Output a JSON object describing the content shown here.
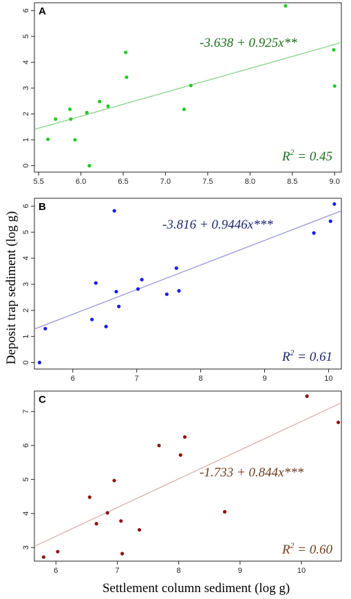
{
  "figure": {
    "ylabel": "Deposit trap sediment (log g)",
    "xlabel": "Settlement column sediment (log g)"
  },
  "chart_data": [
    {
      "type": "scatter",
      "panel": "A",
      "color": "#22cc22",
      "line_color": "#7bd07b",
      "text_color": "#1a6e1a",
      "equation": "-3.638 + 0.925x**",
      "r2_base": "R",
      "r2_sup": "2",
      "r2_value": " = 0.45",
      "xlim": [
        5.45,
        9.08
      ],
      "ylim": [
        -0.25,
        6.3
      ],
      "xticks": [
        5.5,
        6.0,
        6.5,
        7.0,
        7.5,
        8.0,
        8.5,
        9.0
      ],
      "xticklabels": [
        "5.5",
        "6.0",
        "6.5",
        "7.0",
        "7.5",
        "8.0",
        "8.5",
        "9.0"
      ],
      "yticks": [
        0,
        1,
        2,
        3,
        4,
        5,
        6
      ],
      "yticklabels": [
        "0",
        "1",
        "2",
        "3",
        "4",
        "5",
        "6"
      ],
      "intercept": -3.638,
      "slope": 0.925,
      "points": [
        [
          5.61,
          1.02
        ],
        [
          5.7,
          1.8
        ],
        [
          5.87,
          2.18
        ],
        [
          5.88,
          1.8
        ],
        [
          5.93,
          1.0
        ],
        [
          6.07,
          2.05
        ],
        [
          6.1,
          0.0
        ],
        [
          6.22,
          2.48
        ],
        [
          6.32,
          2.3
        ],
        [
          6.53,
          4.38
        ],
        [
          6.54,
          3.42
        ],
        [
          7.22,
          2.18
        ],
        [
          7.3,
          3.1
        ],
        [
          8.42,
          6.18
        ],
        [
          8.99,
          4.48
        ],
        [
          9.0,
          3.08
        ]
      ]
    },
    {
      "type": "scatter",
      "panel": "B",
      "color": "#1a1aee",
      "line_color": "#8c8cd8",
      "text_color": "#1a2670",
      "equation": "-3.816 + 0.9446x***",
      "r2_base": "R",
      "r2_sup": "2",
      "r2_value": " = 0.61",
      "xlim": [
        5.4,
        10.2
      ],
      "ylim": [
        -0.25,
        6.3
      ],
      "xticks": [
        6,
        7,
        8,
        9,
        10
      ],
      "xticklabels": [
        "6",
        "7",
        "8",
        "9",
        "10"
      ],
      "yticks": [
        0,
        1,
        2,
        3,
        4,
        5,
        6
      ],
      "yticklabels": [
        "0",
        "1",
        "2",
        "3",
        "4",
        "5",
        "6"
      ],
      "intercept": -3.816,
      "slope": 0.9446,
      "points": [
        [
          5.48,
          0.0
        ],
        [
          5.57,
          1.3
        ],
        [
          6.3,
          1.65
        ],
        [
          6.36,
          3.05
        ],
        [
          6.52,
          1.38
        ],
        [
          6.65,
          5.82
        ],
        [
          6.68,
          2.72
        ],
        [
          6.72,
          2.15
        ],
        [
          7.02,
          2.82
        ],
        [
          7.08,
          3.18
        ],
        [
          7.47,
          2.62
        ],
        [
          7.62,
          3.62
        ],
        [
          7.66,
          2.75
        ],
        [
          9.77,
          4.97
        ],
        [
          10.03,
          5.42
        ],
        [
          10.09,
          6.08
        ]
      ]
    },
    {
      "type": "scatter",
      "panel": "C",
      "color": "#8b1515",
      "line_color": "#d4a9a3",
      "text_color": "#6e3c1e",
      "equation": "-1.733 + 0.844x***",
      "r2_base": "R",
      "r2_sup": "2",
      "r2_value": " = 0.60",
      "xlim": [
        5.65,
        10.65
      ],
      "ylim": [
        2.6,
        7.6
      ],
      "xticks": [
        6,
        7,
        8,
        9,
        10
      ],
      "xticklabels": [
        "6",
        "7",
        "8",
        "9",
        "10"
      ],
      "yticks": [
        3,
        4,
        5,
        6,
        7
      ],
      "yticklabels": [
        "3",
        "4",
        "5",
        "6",
        "7"
      ],
      "intercept": -1.733,
      "slope": 0.844,
      "points": [
        [
          5.8,
          2.72
        ],
        [
          6.03,
          2.88
        ],
        [
          6.55,
          4.48
        ],
        [
          6.66,
          3.7
        ],
        [
          6.84,
          4.02
        ],
        [
          6.95,
          4.97
        ],
        [
          7.06,
          3.78
        ],
        [
          7.08,
          2.82
        ],
        [
          7.36,
          3.52
        ],
        [
          7.68,
          6.0
        ],
        [
          8.03,
          5.72
        ],
        [
          8.1,
          6.25
        ],
        [
          8.75,
          4.05
        ],
        [
          10.09,
          7.45
        ],
        [
          10.6,
          6.68
        ]
      ]
    }
  ]
}
